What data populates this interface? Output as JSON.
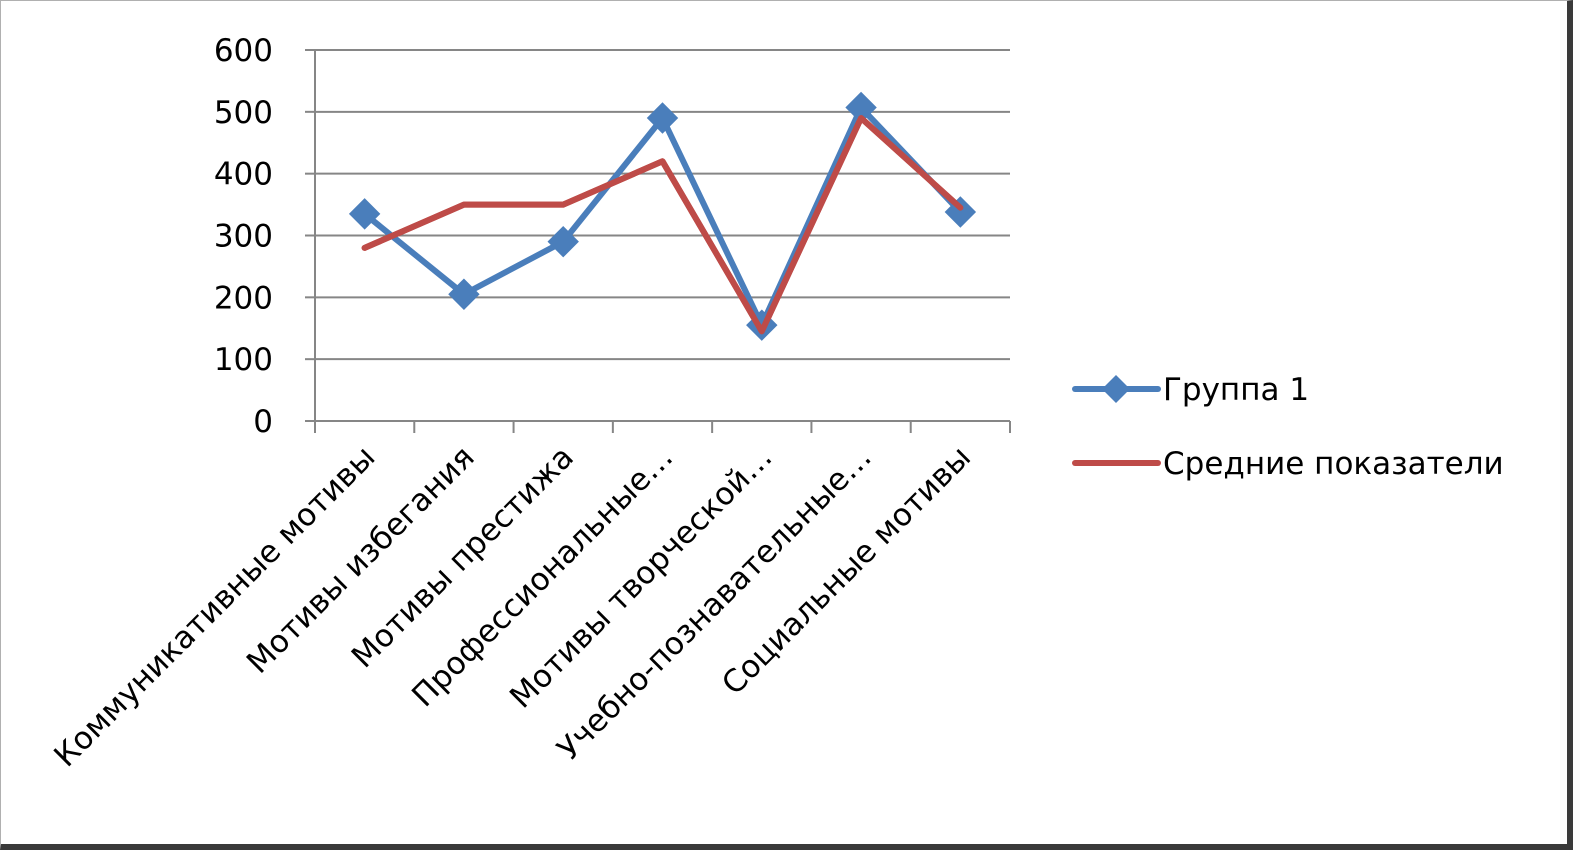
{
  "chart_data": {
    "type": "line",
    "categories": [
      "Коммуникативные мотивы",
      "Мотивы избегания",
      "Мотивы престижа",
      "Профессиональные…",
      "Мотивы творческой…",
      "Учебно-познавательные…",
      "Социальные мотивы"
    ],
    "series": [
      {
        "name": "Группа 1",
        "values": [
          335,
          205,
          290,
          490,
          155,
          507,
          338
        ],
        "color": "#4a7ebb",
        "marker": "diamond"
      },
      {
        "name": "Средние показатели",
        "values": [
          280,
          350,
          350,
          420,
          145,
          490,
          345
        ],
        "color": "#be4b48",
        "marker": "none"
      }
    ],
    "ylim": [
      0,
      600
    ],
    "yticks": [
      0,
      100,
      200,
      300,
      400,
      500,
      600
    ],
    "grid": true,
    "legend": "right",
    "title": "",
    "xlabel": "",
    "ylabel": ""
  }
}
